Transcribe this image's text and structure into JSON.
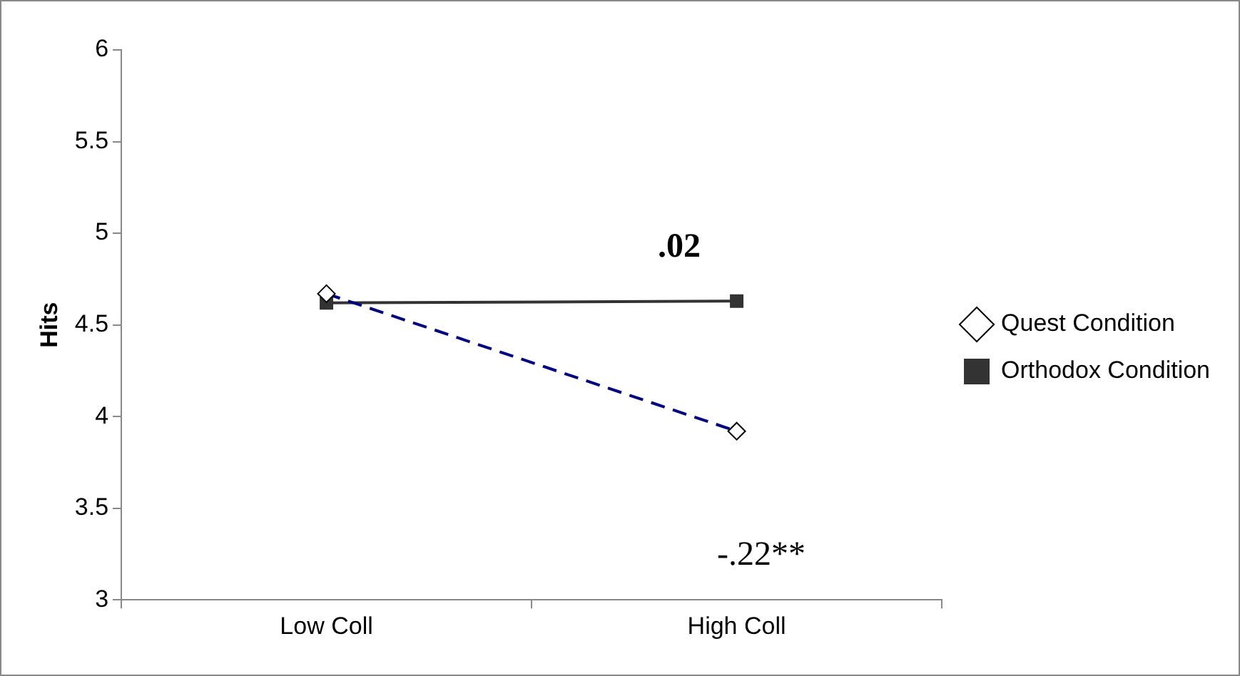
{
  "chart_data": {
    "type": "line",
    "ylabel": "Hits",
    "categories": [
      "Low Coll",
      "High Coll"
    ],
    "series": [
      {
        "name": "Quest Condition",
        "color": "#000080",
        "values": [
          4.67,
          3.92
        ],
        "marker": "diamond",
        "line_style": "dashed"
      },
      {
        "name": "Orthodox Condition",
        "color": "#333333",
        "values": [
          4.62,
          4.63
        ],
        "marker": "square",
        "line_style": "solid"
      }
    ],
    "ylim": [
      3,
      6
    ],
    "yticks": [
      3,
      3.5,
      4,
      4.5,
      5,
      5.5,
      6
    ],
    "grid": false,
    "legend": "right",
    "annotations": [
      ".02",
      "-.22**"
    ]
  }
}
